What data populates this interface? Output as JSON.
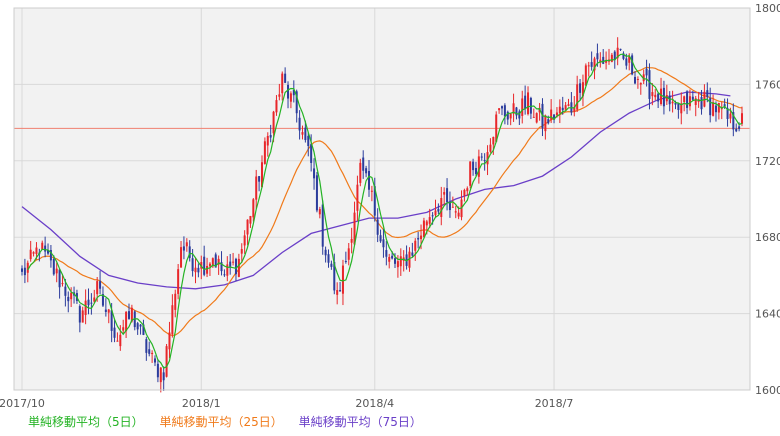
{
  "chart_data": {
    "type": "candlestick",
    "y_range": [
      1600,
      1800
    ],
    "y_ticks": [
      1600,
      1640,
      1680,
      1720,
      1760,
      1800
    ],
    "x_tick_labels": [
      "2017/10",
      "2018/1",
      "2018/4",
      "2018/7"
    ],
    "reference_line": 1737,
    "colors": {
      "background": "#f2f2f2",
      "grid": "#d9d9d9",
      "up": "#e8262a",
      "down": "#2b3c9c",
      "ma5": "#25b325",
      "ma25": "#f07a1a",
      "ma75": "#6a3fc8",
      "reference_line": "#f08070"
    },
    "grid": true,
    "legend": [
      {
        "label": "単純移動平均（5日）",
        "color": "#25b325"
      },
      {
        "label": "単純移動平均（25日）",
        "color": "#f07a1a"
      },
      {
        "label": "単純移動平均（75日）",
        "color": "#6a3fc8"
      }
    ],
    "period_anchors": [
      {
        "label": "2017/10",
        "day": 0
      },
      {
        "label": "2018/1",
        "day": 62
      },
      {
        "label": "2018/4",
        "day": 122
      },
      {
        "label": "2018/7",
        "day": 184
      }
    ],
    "close_path": [
      [
        0,
        1660
      ],
      [
        6,
        1675
      ],
      [
        12,
        1660
      ],
      [
        20,
        1640
      ],
      [
        26,
        1652
      ],
      [
        33,
        1628
      ],
      [
        38,
        1640
      ],
      [
        42,
        1625
      ],
      [
        46,
        1612
      ],
      [
        49,
        1610
      ],
      [
        52,
        1642
      ],
      [
        55,
        1676
      ],
      [
        59,
        1668
      ],
      [
        62,
        1665
      ],
      [
        66,
        1670
      ],
      [
        70,
        1660
      ],
      [
        75,
        1668
      ],
      [
        80,
        1700
      ],
      [
        86,
        1738
      ],
      [
        90,
        1762
      ],
      [
        95,
        1745
      ],
      [
        100,
        1718
      ],
      [
        104,
        1680
      ],
      [
        109,
        1648
      ],
      [
        113,
        1675
      ],
      [
        117,
        1715
      ],
      [
        121,
        1700
      ],
      [
        126,
        1668
      ],
      [
        131,
        1665
      ],
      [
        136,
        1676
      ],
      [
        140,
        1690
      ],
      [
        145,
        1700
      ],
      [
        150,
        1690
      ],
      [
        155,
        1715
      ],
      [
        160,
        1725
      ],
      [
        165,
        1745
      ],
      [
        170,
        1745
      ],
      [
        175,
        1750
      ],
      [
        180,
        1740
      ],
      [
        185,
        1745
      ],
      [
        190,
        1748
      ],
      [
        195,
        1770
      ],
      [
        200,
        1772
      ],
      [
        205,
        1775
      ],
      [
        210,
        1770
      ],
      [
        215,
        1760
      ],
      [
        220,
        1755
      ],
      [
        225,
        1745
      ],
      [
        230,
        1750
      ],
      [
        235,
        1752
      ],
      [
        240,
        1748
      ],
      [
        245,
        1740
      ]
    ],
    "ma75_path": [
      [
        0,
        1696
      ],
      [
        10,
        1684
      ],
      [
        20,
        1670
      ],
      [
        30,
        1660
      ],
      [
        40,
        1656
      ],
      [
        50,
        1654
      ],
      [
        60,
        1653
      ],
      [
        70,
        1655
      ],
      [
        80,
        1660
      ],
      [
        90,
        1672
      ],
      [
        100,
        1682
      ],
      [
        110,
        1686
      ],
      [
        120,
        1690
      ],
      [
        130,
        1690
      ],
      [
        140,
        1693
      ],
      [
        150,
        1700
      ],
      [
        160,
        1705
      ],
      [
        170,
        1707
      ],
      [
        180,
        1712
      ],
      [
        190,
        1722
      ],
      [
        200,
        1735
      ],
      [
        210,
        1745
      ],
      [
        220,
        1752
      ],
      [
        230,
        1756
      ],
      [
        240,
        1755
      ],
      [
        245,
        1754
      ]
    ]
  }
}
